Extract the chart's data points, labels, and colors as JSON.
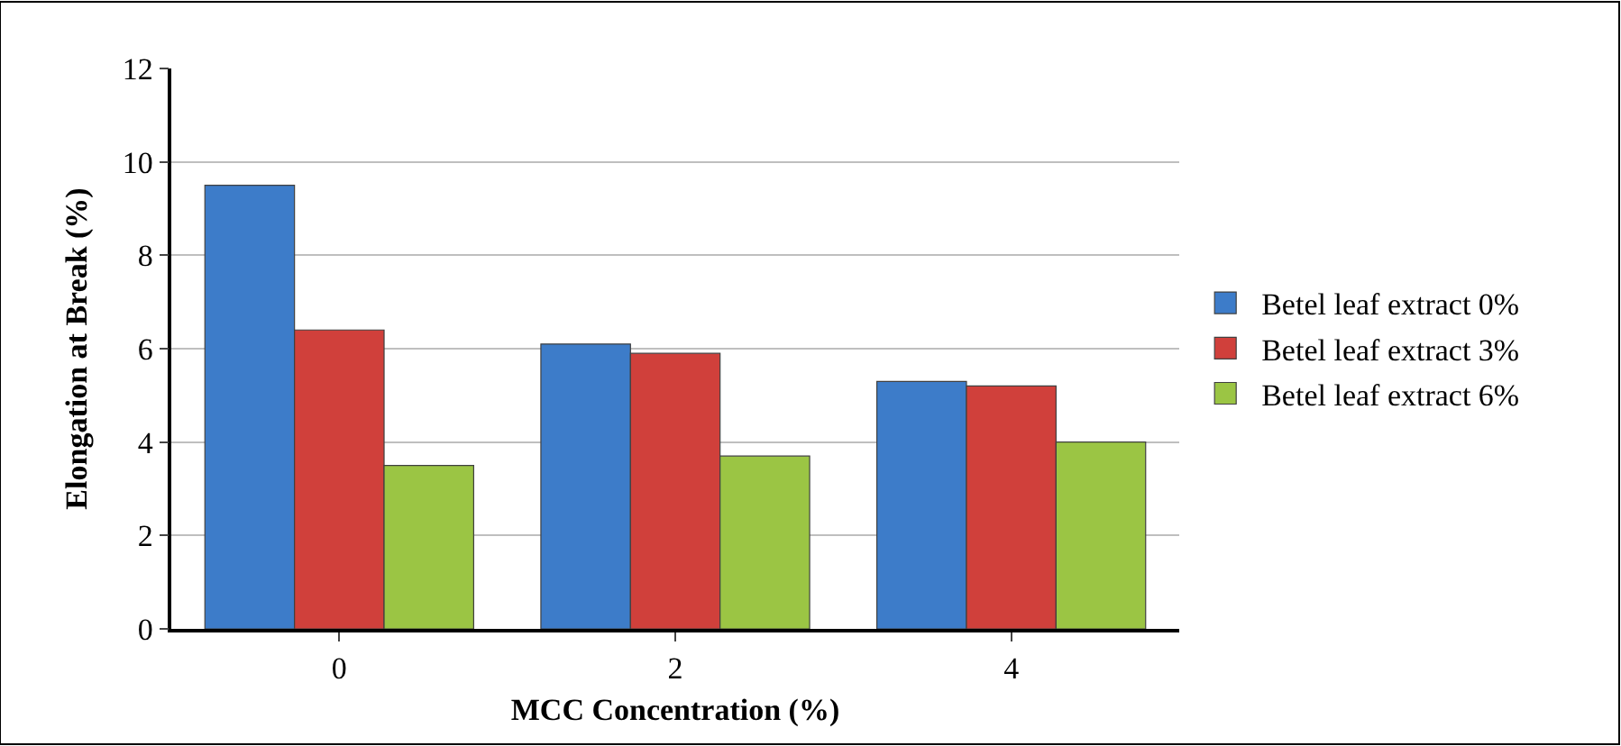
{
  "chart_data": {
    "type": "bar",
    "xlabel": "MCC Concentration (%)",
    "ylabel": "Elongation at Break (%)",
    "categories": [
      "0",
      "2",
      "4"
    ],
    "series": [
      {
        "name": "Betel leaf extract 0%",
        "color": "#3d7cc9",
        "values": [
          9.5,
          6.1,
          5.3
        ]
      },
      {
        "name": "Betel leaf extract 3%",
        "color": "#d0403b",
        "values": [
          6.4,
          5.9,
          5.2
        ]
      },
      {
        "name": "Betel leaf extract 6%",
        "color": "#9bc544",
        "values": [
          3.5,
          3.7,
          4.0
        ]
      }
    ],
    "ylim": [
      0,
      12
    ],
    "yticks": [
      0,
      2,
      4,
      6,
      8,
      10,
      12
    ],
    "grid": "y",
    "legend": "right"
  }
}
